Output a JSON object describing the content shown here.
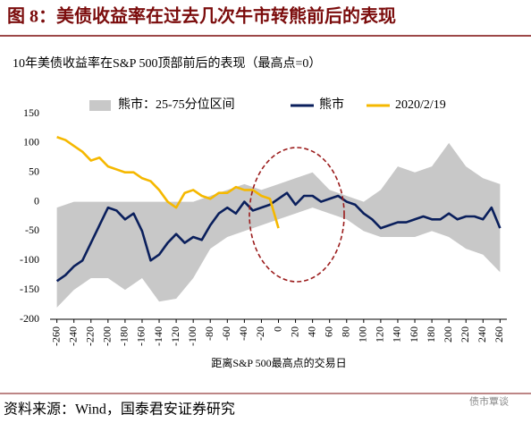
{
  "chart_data": {
    "type": "line",
    "title": "图 8：美债收益率在过去几次牛市转熊前后的表现",
    "subtitle": "10年美债收益率在S&P 500顶部前后的表现（最高点=0）",
    "x_label": "距离S&P 500最高点的交易日",
    "source": "资料来源：Wind，国泰君安证券研究",
    "watermark": "债市覃谈",
    "xlim": [
      -268,
      268
    ],
    "ylim": [
      -200,
      150
    ],
    "xticks": [
      -260,
      -240,
      -220,
      -200,
      -180,
      -160,
      -140,
      -120,
      -100,
      -80,
      -60,
      -40,
      -20,
      0,
      20,
      40,
      60,
      80,
      100,
      120,
      140,
      160,
      180,
      200,
      220,
      240,
      260
    ],
    "yticks": [
      -200,
      -150,
      -100,
      -50,
      0,
      50,
      100,
      150
    ],
    "series": [
      {
        "name": "熊市：25-75分位区间",
        "color": "#c8c8c8",
        "x": [
          -260,
          -240,
          -220,
          -200,
          -180,
          -160,
          -140,
          -120,
          -100,
          -80,
          -60,
          -40,
          -20,
          0,
          20,
          40,
          60,
          80,
          100,
          120,
          140,
          160,
          180,
          200,
          220,
          240,
          260
        ],
        "lower": [
          -180,
          -150,
          -130,
          -130,
          -150,
          -130,
          -170,
          -165,
          -130,
          -80,
          -60,
          -50,
          -40,
          -30,
          -20,
          -10,
          -20,
          -30,
          -50,
          -60,
          -60,
          -60,
          -50,
          -60,
          -80,
          -90,
          -120
        ],
        "upper": [
          -10,
          0,
          0,
          0,
          0,
          0,
          0,
          0,
          0,
          10,
          20,
          30,
          20,
          30,
          40,
          50,
          20,
          10,
          0,
          20,
          60,
          50,
          60,
          100,
          60,
          40,
          30
        ]
      },
      {
        "name": "熊市",
        "color": "#0a1f5c",
        "x": [
          -260,
          -250,
          -240,
          -230,
          -220,
          -210,
          -200,
          -190,
          -180,
          -170,
          -160,
          -150,
          -140,
          -130,
          -120,
          -110,
          -100,
          -90,
          -80,
          -70,
          -60,
          -50,
          -40,
          -30,
          -20,
          -10,
          0,
          10,
          20,
          30,
          40,
          50,
          60,
          70,
          80,
          90,
          100,
          110,
          120,
          130,
          140,
          150,
          160,
          170,
          180,
          190,
          200,
          210,
          220,
          230,
          240,
          250,
          260
        ],
        "values": [
          -135,
          -125,
          -110,
          -100,
          -70,
          -40,
          -10,
          -15,
          -30,
          -20,
          -50,
          -100,
          -90,
          -70,
          -55,
          -70,
          -60,
          -65,
          -40,
          -20,
          -10,
          -20,
          0,
          -15,
          -10,
          -5,
          5,
          15,
          -5,
          10,
          10,
          0,
          5,
          10,
          0,
          -5,
          -20,
          -30,
          -45,
          -40,
          -35,
          -35,
          -30,
          -25,
          -30,
          -30,
          -20,
          -30,
          -25,
          -25,
          -30,
          -10,
          -45
        ]
      },
      {
        "name": "2020/2/19",
        "color": "#f5b800",
        "x": [
          -260,
          -250,
          -240,
          -230,
          -220,
          -210,
          -200,
          -190,
          -180,
          -170,
          -160,
          -150,
          -140,
          -130,
          -120,
          -110,
          -100,
          -90,
          -80,
          -70,
          -60,
          -50,
          -40,
          -30,
          -20,
          -10,
          -5,
          0
        ],
        "values": [
          110,
          105,
          95,
          85,
          70,
          75,
          60,
          55,
          50,
          50,
          40,
          35,
          20,
          0,
          -10,
          15,
          20,
          10,
          5,
          15,
          15,
          25,
          20,
          20,
          10,
          5,
          -20,
          -45
        ]
      }
    ]
  }
}
